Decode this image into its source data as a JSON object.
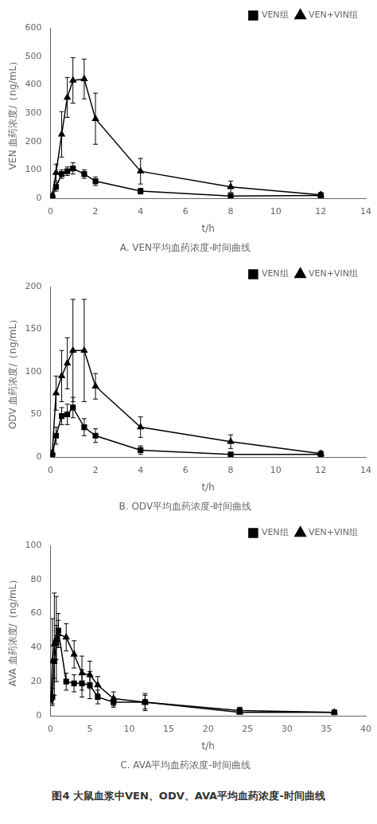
{
  "title": "图4  大鼠血浆中VEN、ODV、AVA平均血药浓度-时间曲线",
  "chart_data": [
    {
      "type": "line",
      "title": "A. VEN平均血药浓度-时间曲线",
      "x_label": "t/h",
      "y_label": "VEN 血药浓度/（ng/mL）",
      "x": [
        0.083,
        0.25,
        0.5,
        0.75,
        1.0,
        1.5,
        2.0,
        4.0,
        8.0,
        12.0
      ],
      "xlim": [
        0,
        14
      ],
      "ylim": [
        0,
        600
      ],
      "xticks": [
        0,
        2,
        4,
        6,
        8,
        10,
        12,
        14
      ],
      "yticks": [
        0,
        100,
        200,
        300,
        400,
        500,
        600
      ],
      "grid": false,
      "legend": "upper right",
      "series": [
        {
          "name": "VEN组",
          "color": "#000000",
          "marker": "square",
          "values": [
            5,
            40,
            85,
            95,
            105,
            85,
            60,
            25,
            8,
            10
          ],
          "errors": [
            2,
            15,
            15,
            15,
            20,
            15,
            15,
            10,
            5,
            5
          ]
        },
        {
          "name": "VEN+VIN组",
          "color": "#000000",
          "marker": "triangle",
          "values": [
            10,
            90,
            225,
            355,
            415,
            420,
            280,
            95,
            40,
            12
          ],
          "errors": [
            5,
            30,
            80,
            70,
            80,
            70,
            90,
            45,
            20,
            8
          ]
        }
      ]
    },
    {
      "type": "line",
      "title": "B. ODV平均血药浓度-时间曲线",
      "x_label": "t/h",
      "y_label": "ODV 血药浓度/（ng/mL）",
      "x": [
        0.083,
        0.25,
        0.5,
        0.75,
        1.0,
        1.5,
        2.0,
        4.0,
        8.0,
        12.0
      ],
      "xlim": [
        0,
        14
      ],
      "ylim": [
        0,
        200
      ],
      "xticks": [
        0,
        2,
        4,
        6,
        8,
        10,
        12,
        14
      ],
      "yticks": [
        0,
        50,
        100,
        150,
        200
      ],
      "grid": false,
      "legend": "upper right",
      "series": [
        {
          "name": "VEN组",
          "color": "#000000",
          "marker": "square",
          "values": [
            2,
            25,
            48,
            50,
            58,
            35,
            25,
            8,
            3,
            3
          ],
          "errors": [
            1,
            10,
            10,
            12,
            12,
            10,
            8,
            5,
            2,
            2
          ]
        },
        {
          "name": "VEN+VIN组",
          "color": "#000000",
          "marker": "triangle",
          "values": [
            5,
            75,
            95,
            110,
            125,
            125,
            83,
            35,
            18,
            4
          ],
          "errors": [
            3,
            20,
            30,
            30,
            60,
            60,
            15,
            12,
            8,
            3
          ]
        }
      ]
    },
    {
      "type": "line",
      "title": "C. AVA平均血药浓度-时间曲线",
      "x_label": "t/h",
      "y_label": "AVA 血药浓度/（ng/mL）",
      "x": [
        0.083,
        0.25,
        0.5,
        0.75,
        1.0,
        2.0,
        3.0,
        4.0,
        5.0,
        6.0,
        8.0,
        12.0,
        24.0,
        36.0
      ],
      "xlim": [
        0,
        40
      ],
      "ylim": [
        0,
        100
      ],
      "xticks": [
        0,
        5,
        10,
        15,
        20,
        25,
        30,
        35,
        40
      ],
      "yticks": [
        0,
        20,
        40,
        60,
        80,
        100
      ],
      "grid": false,
      "legend": "upper right",
      "series": [
        {
          "name": "VEN组",
          "color": "#000000",
          "marker": "square",
          "values": [
            10,
            11,
            32,
            43,
            50,
            20,
            19,
            19,
            18,
            11,
            8,
            8,
            3,
            2
          ],
          "errors": [
            2,
            5,
            10,
            10,
            10,
            5,
            5,
            8,
            8,
            4,
            3,
            5,
            2,
            1
          ]
        },
        {
          "name": "VEN+VIN组",
          "color": "#000000",
          "marker": "triangle",
          "values": [
            11,
            32,
            42,
            45,
            48,
            46,
            36,
            25,
            24,
            18,
            10,
            8,
            2,
            2
          ],
          "errors": [
            3,
            25,
            30,
            25,
            8,
            8,
            8,
            10,
            8,
            5,
            4,
            4,
            1,
            1
          ]
        }
      ]
    }
  ]
}
